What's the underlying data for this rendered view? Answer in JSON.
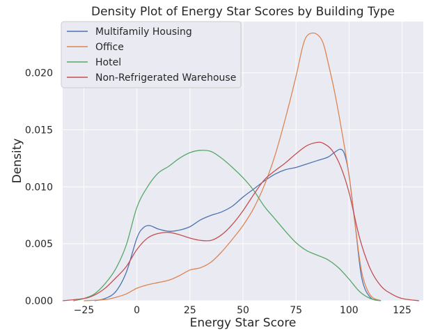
{
  "chart_data": {
    "type": "line",
    "title": "Density Plot of Energy Star Scores by Building Type",
    "xlabel": "Energy Star Score",
    "ylabel": "Density",
    "xlim": [
      -35,
      135
    ],
    "ylim": [
      0,
      0.0245
    ],
    "xticks": [
      -25,
      0,
      25,
      50,
      75,
      100,
      125
    ],
    "xtick_labels": [
      "−25",
      "0",
      "25",
      "50",
      "75",
      "100",
      "125"
    ],
    "yticks": [
      0,
      0.005,
      0.01,
      0.015,
      0.02
    ],
    "ytick_labels": [
      "0.000",
      "0.005",
      "0.010",
      "0.015",
      "0.020"
    ],
    "grid": true,
    "legend_position": "top-left",
    "series": [
      {
        "name": "Multifamily Housing",
        "color": "#4c72b0",
        "x": [
          -20,
          -15,
          -10,
          -5,
          0,
          3,
          6,
          10,
          15,
          20,
          25,
          30,
          35,
          40,
          45,
          50,
          55,
          60,
          65,
          70,
          75,
          80,
          85,
          90,
          93,
          96,
          98,
          100,
          103,
          106,
          110,
          115
        ],
        "y": [
          0,
          0.0002,
          0.0008,
          0.0025,
          0.0055,
          0.0064,
          0.0066,
          0.0063,
          0.0061,
          0.0062,
          0.0065,
          0.0071,
          0.0075,
          0.0078,
          0.0083,
          0.0091,
          0.0098,
          0.0105,
          0.0111,
          0.0115,
          0.0117,
          0.012,
          0.0123,
          0.0126,
          0.013,
          0.0133,
          0.0128,
          0.011,
          0.0065,
          0.002,
          0.0003,
          0
        ]
      },
      {
        "name": "Office",
        "color": "#dd8452",
        "x": [
          -25,
          -15,
          -10,
          -5,
          0,
          5,
          10,
          15,
          20,
          25,
          30,
          35,
          40,
          45,
          50,
          55,
          60,
          65,
          70,
          75,
          78,
          80,
          83,
          86,
          88,
          90,
          93,
          96,
          100,
          103,
          106,
          110,
          115
        ],
        "y": [
          0,
          0.0001,
          0.0003,
          0.0006,
          0.0011,
          0.0014,
          0.0016,
          0.0018,
          0.0022,
          0.0027,
          0.0029,
          0.0034,
          0.0043,
          0.0054,
          0.0066,
          0.0081,
          0.0101,
          0.0127,
          0.016,
          0.0197,
          0.0222,
          0.0232,
          0.0235,
          0.0232,
          0.0225,
          0.021,
          0.0185,
          0.0155,
          0.011,
          0.0065,
          0.0025,
          0.0005,
          0
        ]
      },
      {
        "name": "Hotel",
        "color": "#55a868",
        "x": [
          -30,
          -25,
          -20,
          -15,
          -10,
          -5,
          0,
          5,
          10,
          15,
          20,
          25,
          30,
          35,
          40,
          45,
          50,
          55,
          60,
          65,
          70,
          75,
          80,
          85,
          90,
          95,
          100,
          105,
          110,
          115
        ],
        "y": [
          0,
          0.0002,
          0.0006,
          0.0015,
          0.0028,
          0.0049,
          0.0082,
          0.01,
          0.0112,
          0.0118,
          0.0125,
          0.013,
          0.0132,
          0.0131,
          0.0125,
          0.0117,
          0.0108,
          0.0097,
          0.0083,
          0.0072,
          0.0061,
          0.0051,
          0.0044,
          0.004,
          0.0036,
          0.0029,
          0.0019,
          0.0008,
          0.0002,
          0
        ]
      },
      {
        "name": "Non-Refrigerated Warehouse",
        "color": "#c44e52",
        "x": [
          -35,
          -25,
          -20,
          -15,
          -10,
          -5,
          0,
          5,
          10,
          15,
          20,
          25,
          30,
          35,
          40,
          45,
          50,
          55,
          60,
          65,
          70,
          75,
          80,
          85,
          88,
          92,
          96,
          100,
          105,
          110,
          115,
          120,
          125,
          133
        ],
        "y": [
          0,
          0.0002,
          0.0005,
          0.0011,
          0.002,
          0.003,
          0.0045,
          0.0055,
          0.0059,
          0.006,
          0.0058,
          0.0055,
          0.0053,
          0.0053,
          0.0058,
          0.0067,
          0.0079,
          0.0093,
          0.0106,
          0.0114,
          0.0121,
          0.0129,
          0.0136,
          0.0139,
          0.0138,
          0.0132,
          0.0118,
          0.0095,
          0.0055,
          0.0028,
          0.0013,
          0.0006,
          0.0002,
          0
        ]
      }
    ]
  }
}
